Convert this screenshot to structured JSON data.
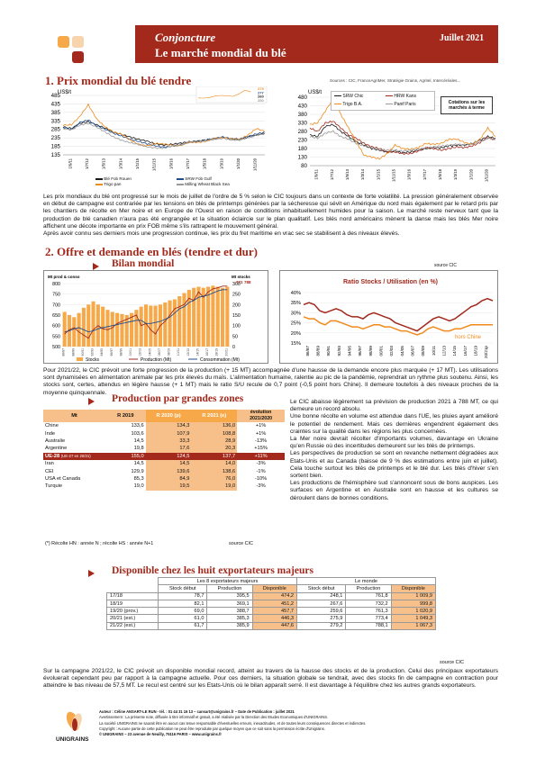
{
  "header": {
    "title": "Conjoncture",
    "subtitle": "Le marché mondial du blé",
    "date": "Juillet 2021"
  },
  "section1": {
    "title": "1. Prix mondial du blé tendre",
    "sources": "Sources : CIC, FranceAgriMer, Stratégie Grains, Agritel, Intercéréales..."
  },
  "chart_left": {
    "type": "line",
    "ylabel": "US$/t",
    "yticks": [
      "485",
      "435",
      "385",
      "335",
      "285",
      "235",
      "185",
      "135"
    ],
    "ylim": [
      135,
      485
    ],
    "xticks": [
      "1/9/11",
      "1/7/12",
      "1/5/13",
      "1/3/14",
      "1/1/15",
      "1/11/15",
      "1/9/16",
      "1/7/17",
      "1/5/18",
      "1/3/19",
      "1/1/20",
      "1/11/20"
    ],
    "legend": [
      "Blé Fob Rouen",
      "SRW Fob Gulf",
      "Trigo pan",
      "Milling Wheat Black Sea"
    ],
    "inset_labels": [
      "279",
      "277",
      "260",
      "250"
    ],
    "colors": {
      "rouen": "#1a1a1a",
      "srw": "#1f4e8c",
      "trigo": "#f08a1c",
      "blacksea": "#9a9a9a"
    },
    "series": {
      "rouen": [
        300,
        290,
        320,
        330,
        312,
        292,
        268,
        255,
        240,
        226,
        216,
        200,
        192,
        198,
        204,
        212,
        216,
        222,
        230,
        238,
        228,
        224,
        240,
        252,
        262
      ],
      "srw": [
        298,
        282,
        326,
        340,
        306,
        286,
        262,
        245,
        226,
        214,
        200,
        188,
        180,
        186,
        196,
        208,
        214,
        222,
        232,
        240,
        230,
        228,
        244,
        258,
        268
      ],
      "trigo": [
        310,
        312,
        362,
        430,
        346,
        300,
        270,
        256,
        222,
        196,
        188,
        202,
        200,
        190,
        190,
        210,
        208,
        215,
        232,
        236,
        230,
        226,
        252,
        290,
        272
      ],
      "blacksea": [
        288,
        282,
        310,
        320,
        298,
        270,
        240,
        220,
        206,
        196,
        182,
        176,
        174,
        188,
        192,
        210,
        214,
        218,
        226,
        232,
        222,
        222,
        236,
        250,
        258
      ]
    }
  },
  "chart_right": {
    "type": "line",
    "ylabel": "US$/t",
    "yticks": [
      "480",
      "430",
      "380",
      "330",
      "280",
      "230",
      "180",
      "130",
      "80"
    ],
    "ylim": [
      80,
      480
    ],
    "xticks": [
      "1/9/11",
      "1/7/12",
      "1/5/13",
      "1/3/14",
      "1/1/15",
      "1/11/15",
      "1/9/16",
      "1/7/17",
      "1/5/18",
      "1/3/19",
      "1/1/20",
      "1/11/20"
    ],
    "legend": [
      "SRW Chic",
      "HRW Kans",
      "Trigo B.A.",
      "Panif Paris"
    ],
    "note": "Cotations sur les marchés à terme",
    "colors": {
      "srwchic": "#1a1a1a",
      "hrw": "#a3291c",
      "trigoba": "#f08a1c",
      "panif": "#9a9a9a"
    },
    "series": {
      "srwchic": [
        260,
        250,
        310,
        320,
        280,
        250,
        220,
        200,
        180,
        170,
        160,
        165,
        155,
        160,
        170,
        180,
        185,
        185,
        195,
        200,
        200,
        210,
        230,
        250,
        240
      ],
      "hrw": [
        300,
        280,
        330,
        340,
        300,
        260,
        240,
        210,
        190,
        180,
        160,
        160,
        150,
        150,
        165,
        185,
        180,
        170,
        180,
        190,
        185,
        195,
        215,
        245,
        230
      ],
      "trigoba": [
        320,
        330,
        400,
        470,
        380,
        300,
        220,
        140,
        130,
        120,
        150,
        200,
        180,
        175,
        185,
        210,
        205,
        210,
        235,
        235,
        215,
        205,
        235,
        300,
        250
      ],
      "panif": [
        250,
        240,
        270,
        280,
        250,
        235,
        210,
        195,
        185,
        175,
        170,
        170,
        165,
        170,
        175,
        185,
        190,
        195,
        200,
        205,
        200,
        205,
        220,
        240,
        235
      ]
    }
  },
  "para1": "Les prix mondiaux du blé ont progressé sur le mois de juillet de l'ordre de 5 % selon le CIC toujours dans un contexte de forte volatilité. La pression généralement observée en début de campagne est contrariée par les tensions en blés de printemps générées par la sécheresse qui sévit en Amérique du nord mais également par le retard pris par les chantiers de récolte en Mer noire et en Europe de l'Ouest en raison de conditions inhabituellement humides pour la saison. Le marché reste nerveux tant que la production de blé canadien n'aura pas été engrangée et la situation éclaircie sur le plan qualitatif. Les blés nord américains mènent la danse mais les blés Mer noire affichent une décote importante en prix FOB même s'ils rattrapent le mouvement général.",
  "para1b": "Après avoir connu ses derniers mois une progression continue, les prix du fret maritime en vrac sec se stabilisent à des niveaux élevés.",
  "section2": {
    "title": "2. Offre et demande en blés (tendre et dur)"
  },
  "bilan": {
    "title": "Bilan mondial",
    "source": "source CIC",
    "ylabel_left": "Mt prod & conso",
    "ylabel_right": "Mt stocks",
    "yticks_left": [
      "800",
      "750",
      "700",
      "650",
      "600",
      "550",
      "500"
    ],
    "yticks_right": [
      "300",
      "250",
      "200",
      "150",
      "100",
      "50",
      "0"
    ],
    "values_top": [
      "788",
      "771"
    ],
    "legend": [
      "Stocks",
      "Production (Mt)",
      "Consommation (Mt)"
    ],
    "colors": {
      "stocks": "#f7a94a",
      "production": "#a3291c",
      "consommation": "#1f4e8c"
    },
    "stocks": [
      165,
      150,
      140,
      160,
      185,
      200,
      215,
      200,
      190,
      175,
      165,
      160,
      155,
      150,
      160,
      175,
      190,
      200,
      195,
      195,
      200,
      210,
      220,
      225,
      240,
      255,
      270,
      280,
      285,
      280,
      285,
      290,
      285,
      280,
      285
    ],
    "production": [
      560,
      580,
      590,
      570,
      555,
      540,
      580,
      600,
      585,
      580,
      590,
      610,
      620,
      630,
      640,
      650,
      600,
      610,
      580,
      560,
      600,
      620,
      650,
      680,
      690,
      700,
      730,
      720,
      760,
      735,
      760,
      775,
      780,
      788,
      788
    ],
    "consommation": [
      570,
      575,
      585,
      590,
      580,
      570,
      575,
      585,
      590,
      595,
      600,
      605,
      610,
      615,
      620,
      625,
      625,
      610,
      610,
      615,
      620,
      630,
      640,
      660,
      680,
      690,
      710,
      720,
      735,
      740,
      745,
      755,
      765,
      771,
      771
    ]
  },
  "ratio": {
    "title": "Ratio Stocks / Utilisation (en %)",
    "yticks": [
      "40%",
      "35%",
      "30%",
      "25%",
      "20%",
      "15%"
    ],
    "ylim": [
      15,
      40
    ],
    "xticks": [
      "86/87",
      "88/89",
      "90/91",
      "92/93",
      "94/95",
      "96/97",
      "98/99",
      "00/01",
      "02/03",
      "04/05",
      "06/07",
      "08/09",
      "10/11",
      "12/13",
      "14/15",
      "16/17",
      "18/19",
      "20/21p"
    ],
    "label_hors_chine": "hors Chine",
    "colors": {
      "total": "#a3291c",
      "hors_chine": "#f08a1c"
    },
    "total": [
      34,
      35,
      34,
      31,
      30,
      31,
      32,
      31,
      29,
      28,
      28,
      27,
      29,
      30,
      29,
      28,
      27,
      25,
      24,
      23,
      22,
      21,
      23,
      25,
      27,
      28,
      27,
      26,
      27,
      29,
      31,
      33,
      34,
      36,
      37,
      36
    ],
    "hors_chine": [
      28,
      27,
      27,
      25,
      24,
      26,
      26,
      25,
      24,
      23,
      23,
      22,
      23,
      24,
      24,
      23,
      23,
      22,
      21,
      21,
      20,
      19,
      20,
      22,
      23,
      22,
      21,
      21,
      22,
      22,
      23,
      24,
      24,
      24,
      24,
      24
    ]
  },
  "para2": "Pour 2021/22, le CIC prévoit une forte progression de la production (+ 15 MT) accompagnée d'une hausse de la demande encore plus marquée (+ 17 MT). Les utilisations sont dynamisées en alimentation animale par les prix élevés du maïs. L'alimentation humaine, ralentie au pic de la pandémie, reprendrait un rythme plus soutenu. Ainsi, les stocks sont, certes, attendus en légère hausse (+ 1 MT) mais le ratio S/U recule de 0,7 point (-0,5 point hors Chine). Il demeure toutefois à des niveaux proches de la moyenne quinquennale.",
  "production_table": {
    "title": "Production par grandes zones",
    "headers": [
      "Mt",
      "R 2019",
      "R 2020 (p)",
      "R 2021 (e)",
      "évolution 2021/2020"
    ],
    "rows": [
      [
        "Chine",
        "133,6",
        "134,3",
        "136,0",
        "+1%"
      ],
      [
        "Inde",
        "103,6",
        "107,9",
        "108,8",
        "+1%"
      ],
      [
        "Australie",
        "14,5",
        "33,3",
        "28,9",
        "-13%"
      ],
      [
        "Argentine",
        "19,8",
        "17,6",
        "20,3",
        "+15%"
      ]
    ],
    "highlight_row": [
      "UE-28",
      "(UE-27 en 20/21)",
      "155,0",
      "124,5",
      "137,7",
      "+11%"
    ],
    "rows2": [
      [
        "Iran",
        "14,5",
        "14,5",
        "14,0",
        "-3%"
      ],
      [
        "CEI",
        "129,9",
        "139,6",
        "138,6",
        "-1%"
      ],
      [
        "USA et Canada",
        "85,3",
        "84,9",
        "76,0",
        "-10%"
      ],
      [
        "Turquie",
        "19,0",
        "19,5",
        "19,0",
        "-3%"
      ]
    ],
    "footnote": "(*) Récolte HN : année N ; récolte HS : année N+1",
    "source": "source CIC"
  },
  "para_right": "Le CIC abaisse légèrement sa prévision de production 2021 à 788 MT, ce qui demeure un record absolu.\nUne bonne récolte en volume est attendue dans l'UE, les pluies ayant amélioré le potentiel de rendement. Mais ces dernières engendrent également des craintes sur la qualité dans les régions les plus concernées.\nLa Mer noire devrait récolter d'importants volumes, davantage en Ukraine qu'en Russie où des incertitudes demeurent sur les blés de printemps.\nLes perspectives de production se sont en revanche nettement dégradées aux Etats-Unis et au Canada (baisse de 9 % des estimations entre juin et juillet). Cela touche surtout les blés de printemps et le blé dur. Les blés d'hiver s'en sortent bien.\nLes productions de l'hémisphère sud s'annoncent sous de bons auspices. Les surfaces en Argentine et en Australie sont en hausse et les cultures se déroulent dans de bonnes conditions.",
  "exporters_table": {
    "title": "Disponible chez les huit exportateurs majeurs",
    "group1": "Les 8 exportateurs majeurs",
    "group2": "Le monde",
    "cols": [
      "Stock début",
      "Production",
      "Disponible",
      "Stock début",
      "Production",
      "Disponible"
    ],
    "rows": [
      [
        "17/18",
        "78,7",
        "395,5",
        "474,2",
        "248,1",
        "761,8",
        "1 009,9"
      ],
      [
        "18/19",
        "82,1",
        "369,1",
        "451,2",
        "267,6",
        "732,2",
        "999,8"
      ],
      [
        "19/20 (prov.)",
        "69,0",
        "388,7",
        "457,7",
        "259,6",
        "761,3",
        "1 020,9"
      ],
      [
        "20/21 (est.)",
        "61,0",
        "385,3",
        "446,3",
        "275,9",
        "773,4",
        "1 049,3"
      ],
      [
        "21/22 (est.)",
        "61,7",
        "385,9",
        "447,6",
        "279,2",
        "788,1",
        "1 067,3"
      ]
    ],
    "source": "source CIC"
  },
  "para3": "Sur la campagne 2021/22, le CIC prévoit un disponible mondial record, atteint au travers de la hausse des stocks et de la production. Celui des principaux exportateurs évoluerait cependant peu par rapport à la campagne actuelle. Pour ces derniers, la situation globale se tendrait, avec des stocks fin de campagne en contraction pour atteindre le bas niveau de 57,5 MT. Le recul est centré sur les Etats-Unis où le bilan apparaît serré. Il est davantage à l'équilibre chez les autres grands exportateurs.",
  "footer": {
    "logo_text": "UNIGRAINS",
    "line1": "Auteur : Céline ANSART-LE RUN - tél. : 01 44 31 16 13 – cansart@unigrains.fr – Date de Publication : juillet 2021",
    "line2": "Avertissement : La présente note, diffusée à titre informatif et gratuit, a été réalisée par la Direction des Etudes Economiques d'UNIGRAINS.",
    "line3": "La société UNIGRAINS ne saurait être en aucun cas tenue responsable d'éventuelles erreurs, inexactitudes, et de toutes leurs conséquences directes et indirectes.",
    "line4": "Copyright : Aucune partie de cette publication ne peut être reproduite par quelque moyen que ce soit sans la permission écrite d'Unigrains.",
    "line5": "© UNIGRAINS – 23 avenue de Neuilly, 75116 PARIS – www.unigrains.fr"
  }
}
